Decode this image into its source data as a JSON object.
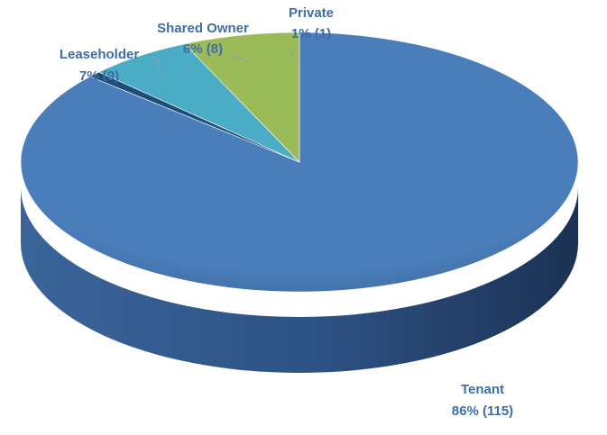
{
  "chart_data": {
    "type": "pie",
    "variant": "3d",
    "slices": [
      {
        "label": "Tenant",
        "percent_label": "86% (115)",
        "value": 115,
        "color": "#4A7EBB"
      },
      {
        "label": "Private",
        "percent_label": "1% (1)",
        "value": 1,
        "color": "#1F4E79"
      },
      {
        "label": "Shared Owner",
        "percent_label": "6% (8)",
        "value": 8,
        "color": "#4BACC6"
      },
      {
        "label": "Leaseholder",
        "percent_label": "7% (9)",
        "value": 9,
        "color": "#9BBB59"
      }
    ],
    "legend": "none",
    "label_color": "#3E6DA8"
  }
}
